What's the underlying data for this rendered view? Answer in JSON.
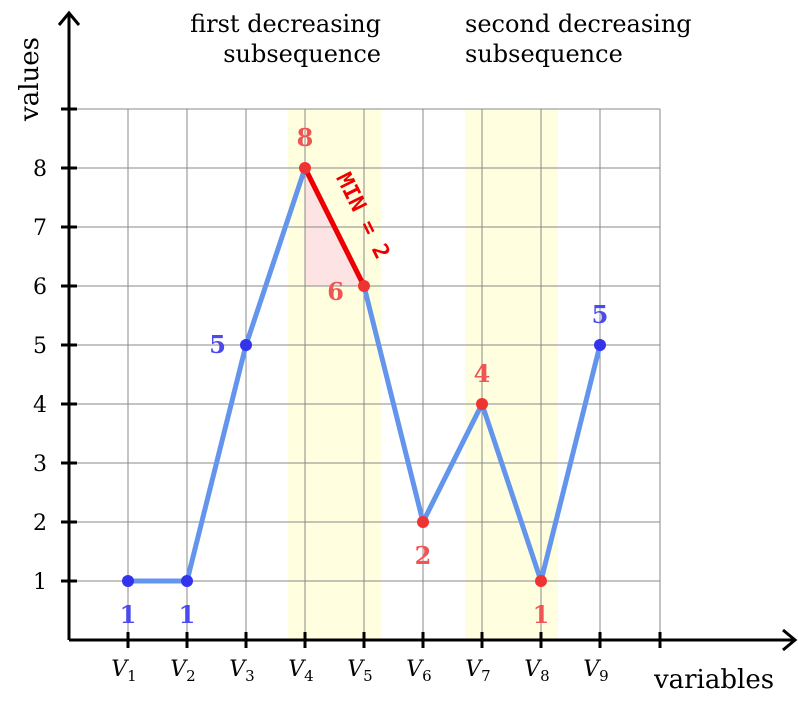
{
  "chart_data": {
    "type": "line",
    "xlabel": "variables",
    "ylabel": "values",
    "categories": [
      "V1",
      "V2",
      "V3",
      "V4",
      "V5",
      "V6",
      "V7",
      "V8",
      "V9"
    ],
    "category_labels": [
      {
        "main": "V",
        "sub": "1"
      },
      {
        "main": "V",
        "sub": "2"
      },
      {
        "main": "V",
        "sub": "3"
      },
      {
        "main": "V",
        "sub": "4"
      },
      {
        "main": "V",
        "sub": "5"
      },
      {
        "main": "V",
        "sub": "6"
      },
      {
        "main": "V",
        "sub": "7"
      },
      {
        "main": "V",
        "sub": "8"
      },
      {
        "main": "V",
        "sub": "9"
      }
    ],
    "values": [
      1,
      1,
      5,
      8,
      6,
      2,
      4,
      1,
      5
    ],
    "point_labels": [
      "1",
      "1",
      "5",
      "8",
      "6",
      "2",
      "4",
      "1",
      "5"
    ],
    "point_colors": [
      "#3333ee",
      "#3333ee",
      "#3333ee",
      "#ee3333",
      "#ee3333",
      "#ee3333",
      "#ee3333",
      "#ee3333",
      "#3333ee"
    ],
    "label_colors": [
      "#4a4aee",
      "#4a4aee",
      "#4a4aee",
      "#ee5555",
      "#ee5555",
      "#ee5555",
      "#ee5555",
      "#ee5555",
      "#4a4aee"
    ],
    "label_positions": [
      "below",
      "below",
      "left",
      "above",
      "below-left",
      "below",
      "above",
      "below",
      "above"
    ],
    "yticks": [
      1,
      2,
      3,
      4,
      5,
      6,
      7,
      8
    ],
    "ylim": [
      0,
      9
    ],
    "grid": true,
    "line_color": "#6495ed",
    "regions": [
      {
        "name": "first decreasing subsequence",
        "title_lines": [
          "first decreasing",
          "subsequence"
        ],
        "from_index": 3,
        "to_index": 4,
        "align": "end",
        "fill": "#ffffe0"
      },
      {
        "name": "second decreasing subsequence",
        "title_lines": [
          "second decreasing",
          "subsequence"
        ],
        "from_index": 6,
        "to_index": 7,
        "align": "start",
        "fill": "#ffffe0"
      }
    ],
    "highlight": {
      "from_index": 3,
      "to_index": 4,
      "label": "MIN = 2",
      "color": "#ee0000",
      "fill": "#fde3e3"
    }
  }
}
